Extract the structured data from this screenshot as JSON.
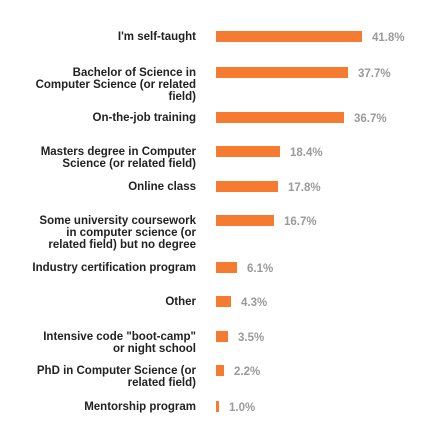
{
  "chart_data": {
    "type": "bar",
    "orientation": "horizontal",
    "categories": [
      "I'm self-taught",
      "Bachelor of Science in\nComputer Science (or related\nfield)",
      "On-the-job training",
      "Masters degree in Computer\nScience (or related field)",
      "Online class",
      "Some university coursework\nin computer science (or\nrelated field) but no degree",
      "Industry certification program",
      "Other",
      "Intensive code \"boot-camp\"\nor night school",
      "PhD in Computer Science (or\nrelated field)",
      "Mentorship program"
    ],
    "values": [
      41.8,
      37.7,
      36.7,
      18.4,
      17.8,
      16.7,
      6.1,
      4.3,
      3.5,
      2.2,
      1.0
    ],
    "value_labels": [
      "41.8%",
      "37.7%",
      "36.7%",
      "18.4%",
      "17.8%",
      "16.7%",
      "6.1%",
      "4.3%",
      "3.5%",
      "2.2%",
      "1.0%"
    ],
    "bar_color": "#f47b30",
    "value_label_color": "#9a9a9a",
    "label_color": "#222222",
    "title": "",
    "xlabel": "",
    "ylabel": "",
    "xlim": [
      0,
      41.8
    ],
    "grid": false,
    "legend": "none"
  }
}
